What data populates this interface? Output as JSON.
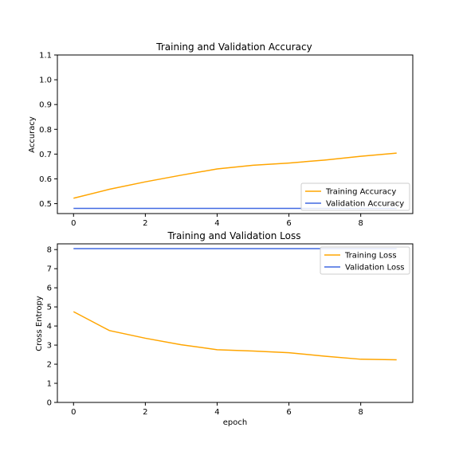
{
  "chart_data": [
    {
      "type": "line",
      "title": "Training and Validation Accuracy",
      "xlabel": "",
      "ylabel": "Accuracy",
      "xlim": [
        -0.45,
        9.45
      ],
      "ylim": [
        0.46,
        1.1
      ],
      "xticks": [
        0,
        2,
        4,
        6,
        8
      ],
      "yticks": [
        0.5,
        0.6,
        0.7,
        0.8,
        0.9,
        1.0,
        1.1
      ],
      "ytick_labels": [
        "0.5",
        "0.6",
        "0.7",
        "0.8",
        "0.9",
        "1.0",
        "1.1"
      ],
      "legend_position": "lower-right",
      "x": [
        0,
        1,
        2,
        3,
        4,
        5,
        6,
        7,
        8,
        9
      ],
      "series": [
        {
          "name": "Training Accuracy",
          "color": "#ffa500",
          "values": [
            0.522,
            0.558,
            0.588,
            0.615,
            0.64,
            0.655,
            0.664,
            0.676,
            0.691,
            0.704
          ]
        },
        {
          "name": "Validation Accuracy",
          "color": "#4169e1",
          "values": [
            0.481,
            0.481,
            0.481,
            0.481,
            0.481,
            0.481,
            0.481,
            0.481,
            0.481,
            0.481
          ]
        }
      ]
    },
    {
      "type": "line",
      "title": "Training and Validation Loss",
      "xlabel": "epoch",
      "ylabel": "Cross Entropy",
      "xlim": [
        -0.45,
        9.45
      ],
      "ylim": [
        0,
        8.3
      ],
      "xticks": [
        0,
        2,
        4,
        6,
        8
      ],
      "yticks": [
        0,
        1,
        2,
        3,
        4,
        5,
        6,
        7,
        8
      ],
      "ytick_labels": [
        "0",
        "1",
        "2",
        "3",
        "4",
        "5",
        "6",
        "7",
        "8"
      ],
      "legend_position": "upper-right",
      "x": [
        0,
        1,
        2,
        3,
        4,
        5,
        6,
        7,
        8,
        9
      ],
      "series": [
        {
          "name": "Training Loss",
          "color": "#ffa500",
          "values": [
            4.75,
            3.76,
            3.36,
            3.02,
            2.76,
            2.69,
            2.6,
            2.42,
            2.26,
            2.23
          ]
        },
        {
          "name": "Validation Loss",
          "color": "#4169e1",
          "values": [
            8.05,
            8.05,
            8.05,
            8.05,
            8.05,
            8.05,
            8.05,
            8.05,
            8.05,
            8.05
          ]
        }
      ]
    }
  ]
}
